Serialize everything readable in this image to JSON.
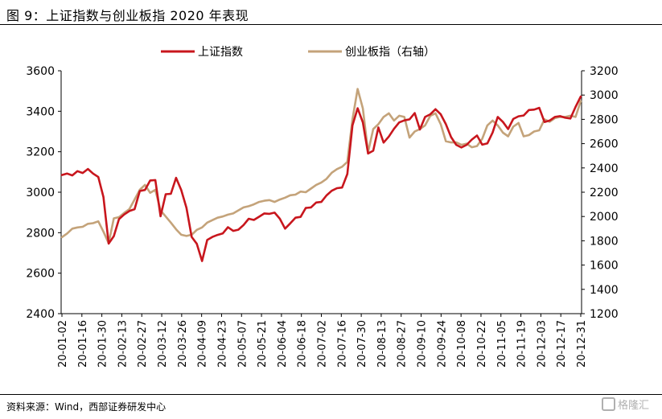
{
  "header": {
    "title": "图 9：上证指数与创业板指 2020 年表现"
  },
  "footer": {
    "source": "资料来源：Wind，西部证券研发中心"
  },
  "watermark": {
    "text": "格隆汇"
  },
  "chart_data": {
    "type": "line",
    "title": "",
    "xlabel": "",
    "ylabel": "",
    "ylim": [
      2400,
      3600
    ],
    "y2lim": [
      1200,
      3200
    ],
    "yticks": [
      2400,
      2600,
      2800,
      3000,
      3200,
      3400,
      3600
    ],
    "y2ticks": [
      1200,
      1400,
      1600,
      1800,
      2000,
      2200,
      2400,
      2600,
      2800,
      3000,
      3200
    ],
    "legend": {
      "placement": "top"
    },
    "grid": false,
    "xtick_labels": [
      "20-01-02",
      "20-01-16",
      "20-01-30",
      "20-02-13",
      "20-02-27",
      "20-03-12",
      "20-03-26",
      "20-04-09",
      "20-04-23",
      "20-05-07",
      "20-05-21",
      "20-06-04",
      "20-06-18",
      "20-07-02",
      "20-07-16",
      "20-07-30",
      "20-08-13",
      "20-08-27",
      "20-09-10",
      "20-09-24",
      "20-10-08",
      "20-10-22",
      "20-11-05",
      "20-11-19",
      "20-12-03",
      "20-12-17",
      "20-12-31"
    ],
    "series": [
      {
        "name": "上证指数",
        "axis": "left",
        "color": "#c8161d",
        "values": [
          3085,
          3092,
          3083,
          3104,
          3095,
          3115,
          3092,
          3075,
          2976,
          2746,
          2783,
          2867,
          2890,
          2907,
          2916,
          3006,
          3011,
          3058,
          3060,
          2881,
          2990,
          2992,
          3071,
          3011,
          2923,
          2779,
          2745,
          2660,
          2764,
          2779,
          2789,
          2796,
          2827,
          2809,
          2815,
          2838,
          2869,
          2863,
          2879,
          2895,
          2893,
          2899,
          2869,
          2820,
          2846,
          2874,
          2878,
          2922,
          2925,
          2949,
          2952,
          2984,
          3007,
          3020,
          3023,
          3090,
          3330,
          3415,
          3345,
          3191,
          3205,
          3320,
          3245,
          3275,
          3313,
          3345,
          3355,
          3360,
          3391,
          3310,
          3372,
          3385,
          3410,
          3385,
          3336,
          3272,
          3234,
          3221,
          3234,
          3260,
          3280,
          3235,
          3241,
          3295,
          3372,
          3347,
          3312,
          3362,
          3375,
          3379,
          3406,
          3408,
          3417,
          3347,
          3354,
          3372,
          3376,
          3368,
          3364,
          3421,
          3473
        ]
      },
      {
        "name": "创业板指",
        "axis": "right",
        "color": "#c4a37a",
        "values": [
          1830,
          1860,
          1900,
          1910,
          1915,
          1940,
          1945,
          1960,
          1875,
          1780,
          1985,
          1995,
          2030,
          2060,
          2140,
          2220,
          2260,
          2195,
          2220,
          2050,
          2000,
          1950,
          1895,
          1850,
          1840,
          1850,
          1890,
          1910,
          1950,
          1970,
          1990,
          2000,
          2015,
          2025,
          2050,
          2075,
          2085,
          2100,
          2120,
          2130,
          2135,
          2120,
          2140,
          2155,
          2175,
          2180,
          2205,
          2200,
          2230,
          2260,
          2280,
          2310,
          2360,
          2390,
          2410,
          2450,
          2800,
          3050,
          2890,
          2530,
          2720,
          2760,
          2820,
          2850,
          2790,
          2830,
          2820,
          2650,
          2700,
          2720,
          2750,
          2830,
          2850,
          2760,
          2620,
          2610,
          2610,
          2590,
          2600,
          2570,
          2580,
          2640,
          2750,
          2790,
          2750,
          2690,
          2660,
          2740,
          2770,
          2660,
          2670,
          2700,
          2710,
          2800,
          2780,
          2810,
          2820,
          2820,
          2830,
          2820,
          2950
        ]
      }
    ]
  }
}
